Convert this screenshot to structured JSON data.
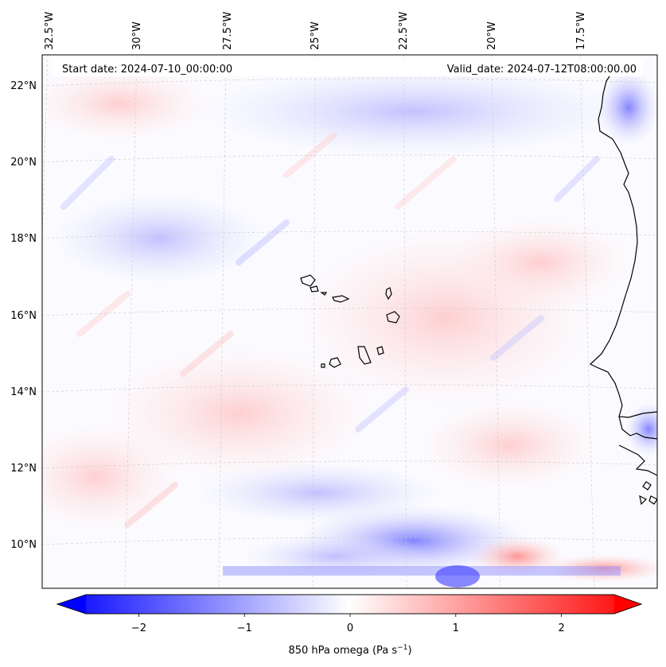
{
  "header": {
    "start_date": "Start date: 2024-07-10_00:00:00",
    "valid_date": "Valid_date: 2024-07-12T08:00:00.00"
  },
  "map": {
    "projection": "lambert-conformal",
    "lon_ticks": [
      "32.5°W",
      "30°W",
      "27.5°W",
      "25°W",
      "22.5°W",
      "20°W",
      "17.5°W"
    ],
    "lat_ticks": [
      "22°N",
      "20°N",
      "18°N",
      "16°N",
      "14°N",
      "12°N",
      "10°N"
    ],
    "gridlines": true,
    "coastlines": true,
    "features": [
      "Cabo Verde islands",
      "West African coast (Mauritania, Senegal, Gambia, Guinea-Bissau)"
    ]
  },
  "colorbar": {
    "label_main": "850 hPa omega (Pa s",
    "label_sup": "−1",
    "label_tail": ")",
    "ticks": [
      "−2",
      "−1",
      "0",
      "1",
      "2"
    ],
    "tick_values": [
      -2,
      -1,
      0,
      1,
      2
    ],
    "range": [
      -2.6,
      2.6
    ],
    "extend": "both",
    "cmap": "bwr",
    "color_low": "#0000ff",
    "color_mid": "#ffffff",
    "color_high": "#ff0000"
  }
}
